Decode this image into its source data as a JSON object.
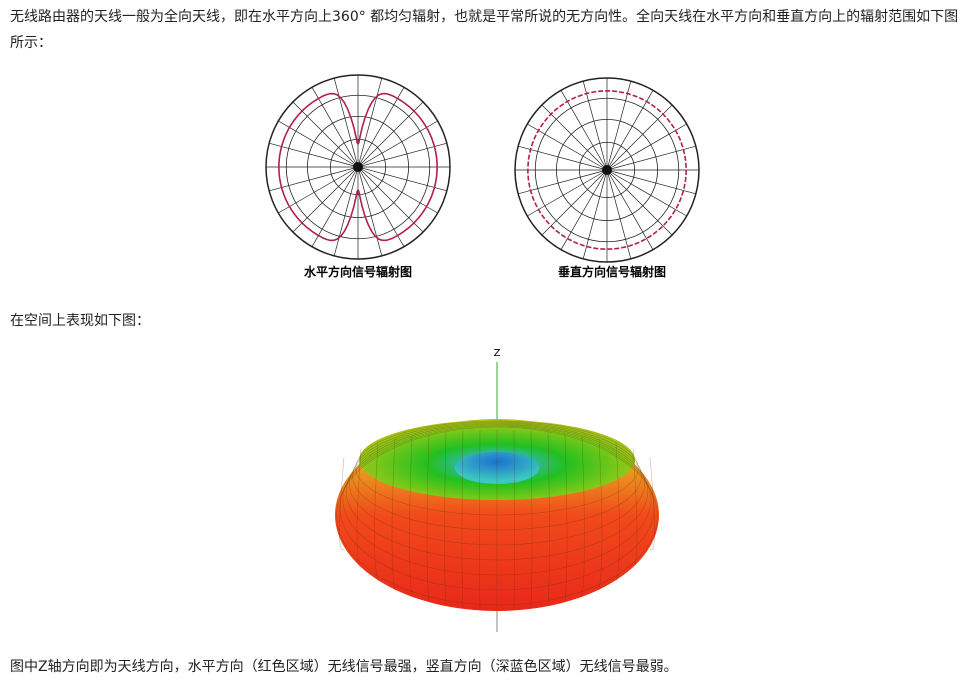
{
  "intro": "无线路由器的天线一般为全向天线，即在水平方向上360° 都均匀辐射，也就是平常所说的无方向性。全向天线在水平方向和垂直方向上的辐射范围如下图所示：",
  "figure1": {
    "horizontal_caption": "水平方向信号辐射图",
    "vertical_caption": "垂直方向信号辐射图"
  },
  "space_text": "在空间上表现如下图：",
  "figure2": {
    "axis_label": "Z"
  },
  "conclusion": "图中Z轴方向即为天线方向，水平方向（红色区域）无线信号最强，竖直方向（深蓝色区域）无线信号最弱。"
}
